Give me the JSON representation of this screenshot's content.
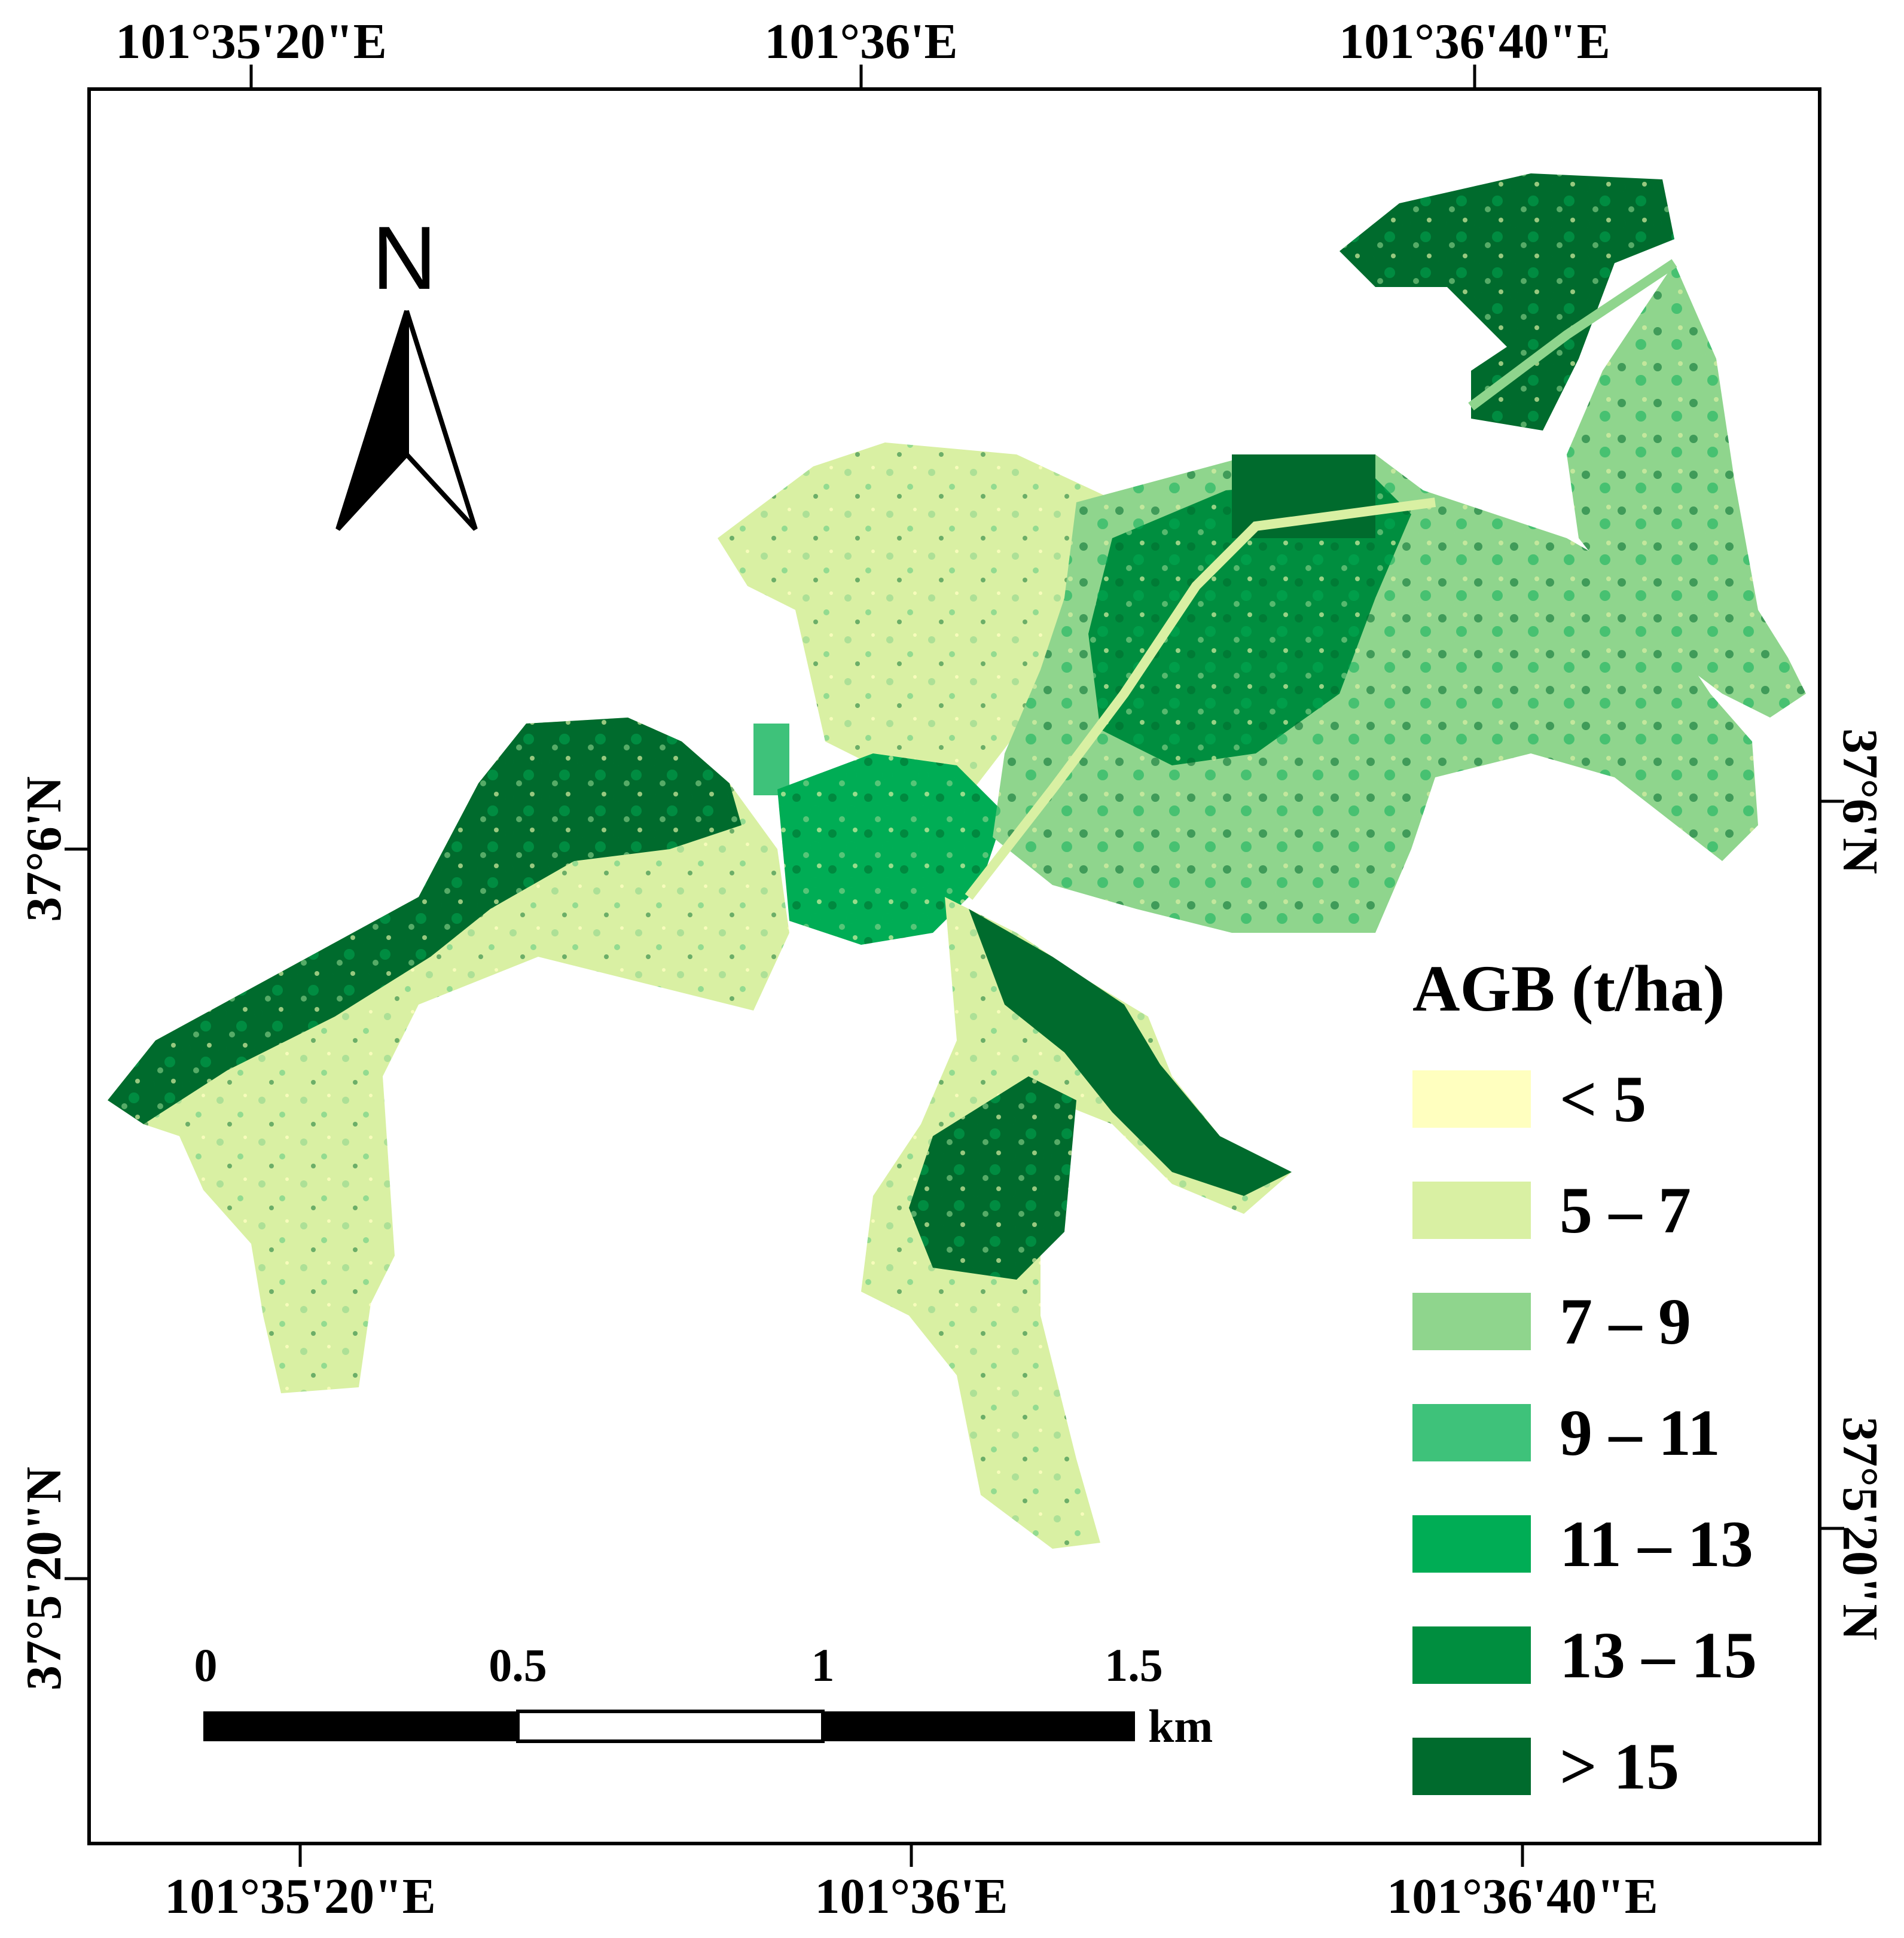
{
  "map": {
    "legend": {
      "title": "AGB (t/ha)",
      "classes": [
        {
          "label": "< 5",
          "color": "#ffffbf"
        },
        {
          "label": "5 – 7",
          "color": "#d9f0a3"
        },
        {
          "label": "7 – 9",
          "color": "#8fd58d"
        },
        {
          "label": "9 – 11",
          "color": "#3ec27a"
        },
        {
          "label": "11 – 13",
          "color": "#00ad55"
        },
        {
          "label": "13 – 15",
          "color": "#008e3f"
        },
        {
          "label": "> 15",
          "color": "#006b2d"
        }
      ]
    },
    "north_arrow": {
      "label": "N"
    },
    "scale_bar": {
      "labels": [
        "0",
        "0.5",
        "1",
        "1.5"
      ],
      "unit": "km"
    },
    "graticule": {
      "top": [
        "101°35'20\"E",
        "101°36'E",
        "101°36'40\"E"
      ],
      "bottom": [
        "101°35'20\"E",
        "101°36'E",
        "101°36'40\"E"
      ],
      "left": [
        "37°6'N",
        "37°5'20\"N"
      ],
      "right": [
        "37°6'N",
        "37°5'20\"N"
      ]
    }
  }
}
